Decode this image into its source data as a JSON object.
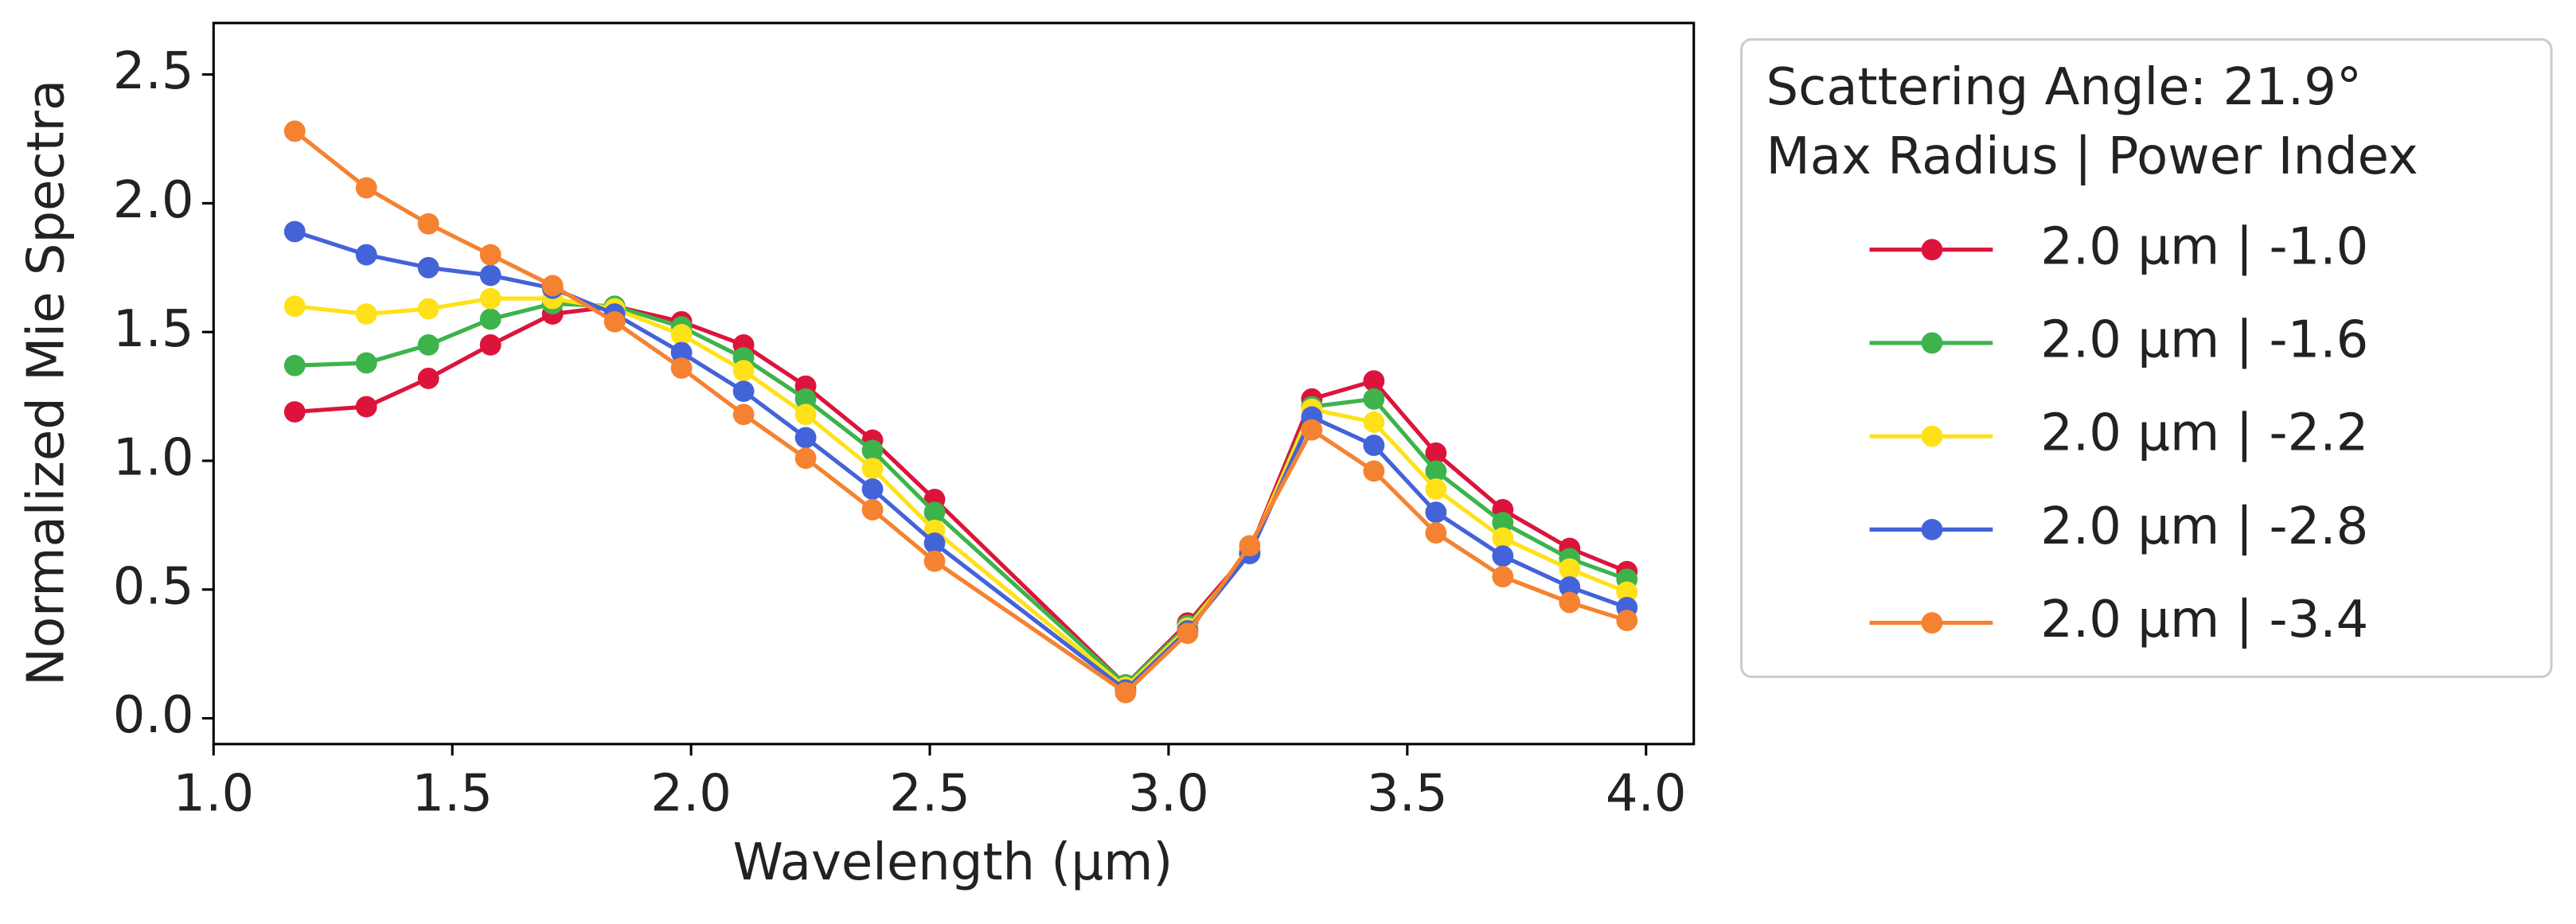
{
  "chart_data": {
    "type": "line",
    "xlabel": "Wavelength (μm)",
    "ylabel": "Normalized Mie Spectra",
    "legend_title": [
      "Scattering Angle: 21.9°",
      "Max Radius | Power Index"
    ],
    "legend_position": "outside-right",
    "x": [
      1.17,
      1.32,
      1.45,
      1.58,
      1.71,
      1.84,
      1.98,
      2.11,
      2.24,
      2.38,
      2.51,
      2.91,
      3.04,
      3.17,
      3.3,
      3.43,
      3.56,
      3.7,
      3.84,
      3.96
    ],
    "series": [
      {
        "name": "2.0 μm | -1.0",
        "color": "#dc143c",
        "values": [
          1.19,
          1.21,
          1.32,
          1.45,
          1.57,
          1.6,
          1.54,
          1.45,
          1.29,
          1.08,
          0.85,
          0.13,
          0.37,
          0.65,
          1.24,
          1.31,
          1.03,
          0.81,
          0.66,
          0.57
        ]
      },
      {
        "name": "2.0 μm | -1.6",
        "color": "#3cb44b",
        "values": [
          1.37,
          1.38,
          1.45,
          1.55,
          1.61,
          1.6,
          1.52,
          1.4,
          1.24,
          1.04,
          0.8,
          0.13,
          0.36,
          0.64,
          1.21,
          1.24,
          0.96,
          0.76,
          0.62,
          0.54
        ]
      },
      {
        "name": "2.0 μm | -2.2",
        "color": "#ffe119",
        "values": [
          1.6,
          1.57,
          1.59,
          1.63,
          1.63,
          1.59,
          1.49,
          1.35,
          1.18,
          0.97,
          0.73,
          0.12,
          0.35,
          0.65,
          1.2,
          1.15,
          0.89,
          0.7,
          0.58,
          0.49
        ]
      },
      {
        "name": "2.0 μm | -2.8",
        "color": "#4363d8",
        "values": [
          1.89,
          1.8,
          1.75,
          1.72,
          1.67,
          1.57,
          1.42,
          1.27,
          1.09,
          0.89,
          0.68,
          0.11,
          0.34,
          0.64,
          1.17,
          1.06,
          0.8,
          0.63,
          0.51,
          0.43
        ]
      },
      {
        "name": "2.0 μm | -3.4",
        "color": "#f58231",
        "values": [
          2.28,
          2.06,
          1.92,
          1.8,
          1.68,
          1.54,
          1.36,
          1.18,
          1.01,
          0.81,
          0.61,
          0.1,
          0.33,
          0.67,
          1.12,
          0.96,
          0.72,
          0.55,
          0.45,
          0.38
        ]
      }
    ],
    "xlim": [
      1.0,
      4.1
    ],
    "ylim": [
      -0.1,
      2.7
    ],
    "xticks": [
      {
        "value": 1,
        "label": "1.0"
      },
      1.5,
      {
        "value": 2,
        "label": "2.0"
      },
      2.5,
      {
        "value": 3,
        "label": "3.0"
      },
      3.5,
      {
        "value": 4,
        "label": "4.0"
      }
    ],
    "yticks": [
      {
        "value": 0,
        "label": "0.0"
      },
      0.5,
      {
        "value": 1,
        "label": "1.0"
      },
      1.5,
      {
        "value": 2,
        "label": "2.0"
      },
      2.5
    ],
    "grid": false
  }
}
